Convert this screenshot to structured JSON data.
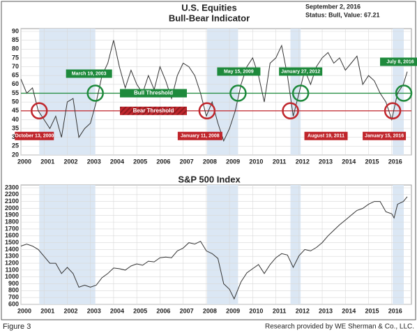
{
  "chart_data": [
    {
      "type": "line",
      "title": "U.S. Equities",
      "subtitle": "Bull-Bear Indicator",
      "status_date": "September 2, 2016",
      "status": "Status: Bull, Value: 67.21",
      "x": [
        2000.0,
        2000.25,
        2000.5,
        2000.75,
        2001.0,
        2001.25,
        2001.5,
        2001.75,
        2002.0,
        2002.25,
        2002.5,
        2002.75,
        2003.0,
        2003.25,
        2003.5,
        2003.75,
        2004.0,
        2004.25,
        2004.5,
        2004.75,
        2005.0,
        2005.25,
        2005.5,
        2005.75,
        2006.0,
        2006.25,
        2006.5,
        2006.75,
        2007.0,
        2007.25,
        2007.5,
        2007.75,
        2008.0,
        2008.25,
        2008.5,
        2008.75,
        2009.0,
        2009.25,
        2009.5,
        2009.75,
        2010.0,
        2010.25,
        2010.5,
        2010.75,
        2011.0,
        2011.25,
        2011.5,
        2011.75,
        2012.0,
        2012.25,
        2012.5,
        2012.75,
        2013.0,
        2013.25,
        2013.5,
        2013.75,
        2014.0,
        2014.25,
        2014.5,
        2014.75,
        2015.0,
        2015.25,
        2015.5,
        2015.75,
        2016.0,
        2016.25,
        2016.5,
        2016.67
      ],
      "series": [
        {
          "color": "#333333",
          "values": [
            63,
            55,
            58,
            45,
            40,
            35,
            42,
            30,
            50,
            52,
            30,
            35,
            38,
            50,
            65,
            72,
            85,
            70,
            58,
            68,
            60,
            55,
            65,
            57,
            70,
            62,
            52,
            65,
            72,
            70,
            65,
            55,
            42,
            50,
            38,
            28,
            35,
            45,
            60,
            70,
            75,
            65,
            50,
            72,
            75,
            82,
            65,
            42,
            55,
            68,
            60,
            70,
            75,
            78,
            72,
            75,
            68,
            72,
            76,
            60,
            65,
            62,
            55,
            50,
            40,
            55,
            60,
            67.21
          ]
        }
      ],
      "thresholds": [
        {
          "label": "Bull Threshold",
          "value": 55,
          "color": "#1e8a3c"
        },
        {
          "label": "Bear Threshold",
          "value": 45,
          "color": "#c0262c"
        }
      ],
      "bands": [
        [
          2000.79,
          2003.21
        ],
        [
          2008.03,
          2009.37
        ],
        [
          2011.63,
          2012.07
        ],
        [
          2016.04,
          2016.52
        ]
      ],
      "annotations": [
        {
          "label": "October 13, 2000",
          "x": 2000.79,
          "y": 45,
          "color": "#c0262c"
        },
        {
          "label": "March 19, 2003",
          "x": 2003.21,
          "y": 55,
          "color": "#1e8a3c"
        },
        {
          "label": "January 11, 2008",
          "x": 2008.03,
          "y": 45,
          "color": "#c0262c"
        },
        {
          "label": "May 15, 2009",
          "x": 2009.37,
          "y": 55,
          "color": "#1e8a3c"
        },
        {
          "label": "August 19, 2011",
          "x": 2011.63,
          "y": 45,
          "color": "#c0262c"
        },
        {
          "label": "January 27, 2012",
          "x": 2012.07,
          "y": 55,
          "color": "#1e8a3c"
        },
        {
          "label": "January 15, 2016",
          "x": 2016.04,
          "y": 45,
          "color": "#c0262c"
        },
        {
          "label": "July 8, 2016",
          "x": 2016.52,
          "y": 55,
          "color": "#1e8a3c"
        }
      ],
      "xlim": [
        2000,
        2016.85
      ],
      "xticks": [
        2000,
        2001,
        2002,
        2003,
        2004,
        2005,
        2006,
        2007,
        2008,
        2009,
        2010,
        2011,
        2012,
        2013,
        2014,
        2015,
        2016
      ],
      "ylim": [
        20,
        90
      ],
      "yticks": [
        20,
        25,
        30,
        35,
        40,
        45,
        50,
        55,
        60,
        65,
        70,
        75,
        80,
        85,
        90
      ],
      "grid": true
    },
    {
      "type": "line",
      "title": "S&P 500 Index",
      "x": [
        2000.0,
        2000.25,
        2000.5,
        2000.75,
        2001.0,
        2001.25,
        2001.5,
        2001.75,
        2002.0,
        2002.25,
        2002.5,
        2002.75,
        2003.0,
        2003.25,
        2003.5,
        2003.75,
        2004.0,
        2004.25,
        2004.5,
        2004.75,
        2005.0,
        2005.25,
        2005.5,
        2005.75,
        2006.0,
        2006.25,
        2006.5,
        2006.75,
        2007.0,
        2007.25,
        2007.5,
        2007.75,
        2008.0,
        2008.25,
        2008.5,
        2008.75,
        2009.0,
        2009.2,
        2009.5,
        2009.75,
        2010.0,
        2010.25,
        2010.5,
        2010.75,
        2011.0,
        2011.25,
        2011.5,
        2011.75,
        2012.0,
        2012.25,
        2012.5,
        2012.75,
        2013.0,
        2013.25,
        2013.5,
        2013.75,
        2014.0,
        2014.25,
        2014.5,
        2014.75,
        2015.0,
        2015.25,
        2015.5,
        2015.75,
        2016.0,
        2016.1,
        2016.25,
        2016.5,
        2016.67
      ],
      "series": [
        {
          "color": "#333333",
          "values": [
            1450,
            1480,
            1450,
            1400,
            1300,
            1200,
            1200,
            1050,
            1140,
            1050,
            850,
            880,
            850,
            880,
            990,
            1050,
            1130,
            1120,
            1100,
            1160,
            1190,
            1170,
            1230,
            1220,
            1280,
            1290,
            1280,
            1380,
            1420,
            1500,
            1480,
            1520,
            1380,
            1340,
            1270,
            900,
            820,
            680,
            930,
            1060,
            1120,
            1180,
            1050,
            1180,
            1280,
            1340,
            1320,
            1140,
            1310,
            1400,
            1380,
            1430,
            1500,
            1600,
            1680,
            1760,
            1830,
            1900,
            1970,
            2000,
            2060,
            2100,
            2100,
            1950,
            1920,
            1860,
            2060,
            2100,
            2170
          ]
        }
      ],
      "bands": [
        [
          2000.79,
          2003.21
        ],
        [
          2008.03,
          2009.37
        ],
        [
          2011.63,
          2012.07
        ],
        [
          2016.04,
          2016.52
        ]
      ],
      "xlim": [
        2000,
        2016.85
      ],
      "xticks": [
        2000,
        2001,
        2002,
        2003,
        2004,
        2005,
        2006,
        2007,
        2008,
        2009,
        2010,
        2011,
        2012,
        2013,
        2014,
        2015,
        2016
      ],
      "ylim": [
        600,
        2300
      ],
      "yticks": [
        600,
        700,
        800,
        900,
        1000,
        1100,
        1200,
        1300,
        1400,
        1500,
        1600,
        1700,
        1800,
        1900,
        2000,
        2100,
        2200,
        2300
      ],
      "grid": true
    }
  ],
  "footer": {
    "left": "Figure 3",
    "right": "Research provided by WE Sherman & Co., LLC."
  }
}
